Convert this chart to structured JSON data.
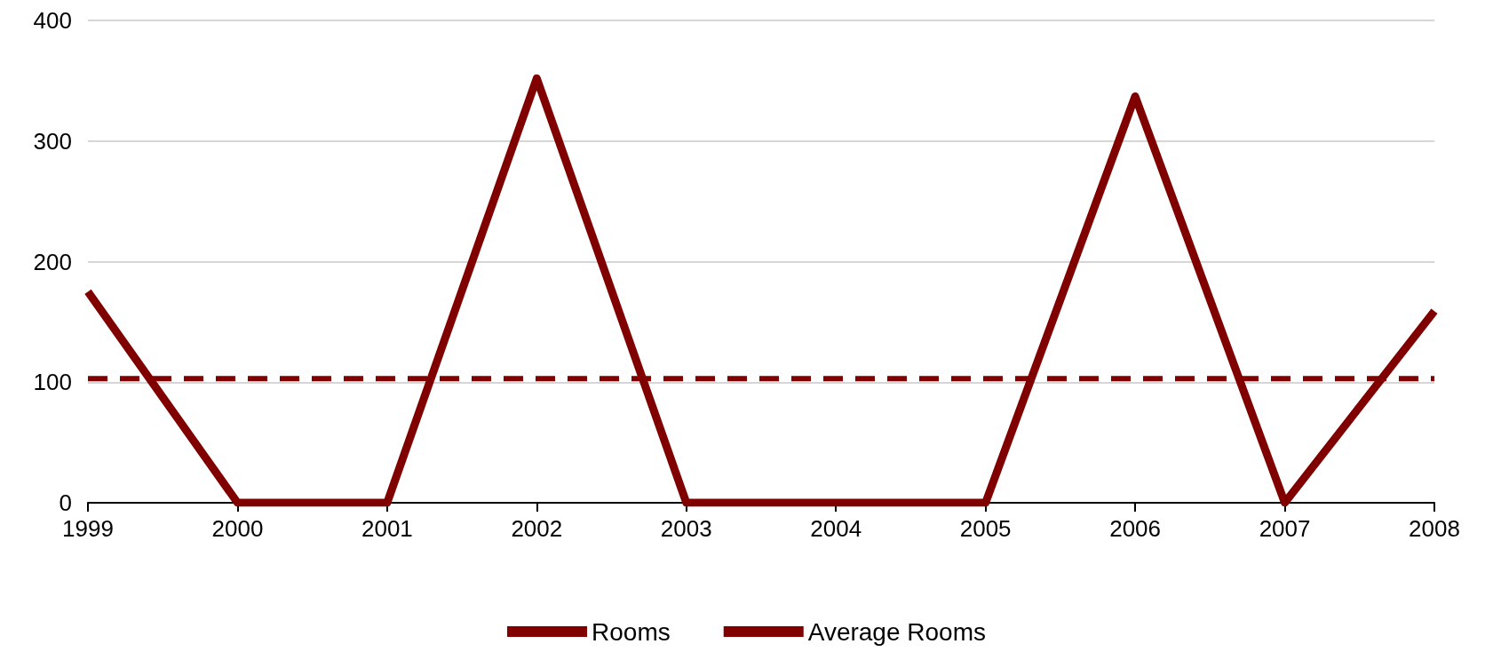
{
  "chart_data": {
    "type": "line",
    "categories": [
      "1999",
      "2000",
      "2001",
      "2002",
      "2003",
      "2004",
      "2005",
      "2006",
      "2007",
      "2008"
    ],
    "series": [
      {
        "name": "Rooms",
        "color": "#800000",
        "values": [
          175,
          0,
          0,
          352,
          0,
          0,
          0,
          337,
          0,
          159
        ]
      },
      {
        "name": "Average Rooms",
        "color": "#800000",
        "line_style": "dashed",
        "values": [
          103,
          103,
          103,
          103,
          103,
          103,
          103,
          103,
          103,
          103
        ]
      }
    ],
    "ylim": [
      0,
      400
    ],
    "yticks": [
      0,
      100,
      200,
      300,
      400
    ],
    "grid": "y",
    "legend": "bottom",
    "marker": "none",
    "line_style": "solid"
  }
}
